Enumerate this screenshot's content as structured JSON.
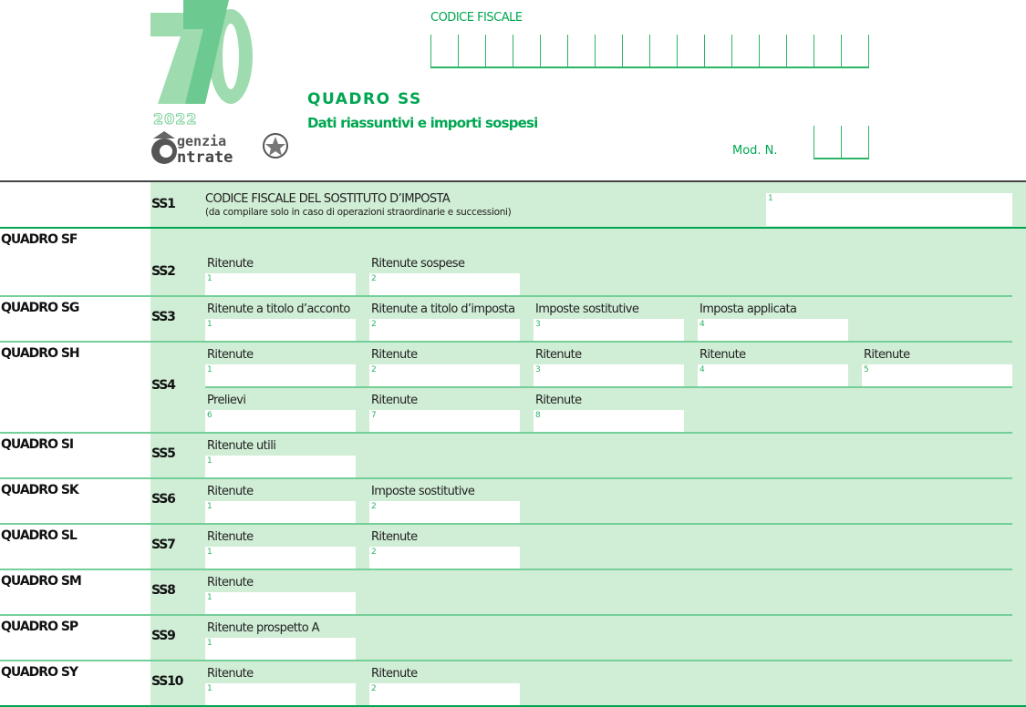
{
  "header": {
    "logo_number": "70",
    "logo_year": "2022",
    "logo_agency": "Agenzia Entrate",
    "codice_fiscale_label": "CODICE FISCALE",
    "codice_fiscale_boxes": 16,
    "title": "QUADRO SS",
    "subtitle": "Dati riassuntivi e importi sospesi",
    "mod_label": "Mod. N.",
    "mod_boxes": 2
  },
  "colors": {
    "accent": "#00a651",
    "background": "#d0edd5",
    "line": "#74cf99"
  },
  "ss1": {
    "code": "SS1",
    "title": "CODICE FISCALE DEL SOSTITUTO D’IMPOSTA",
    "note": "(da compilare solo in caso di operazioni straordinarie e successioni)",
    "field_num": "1"
  },
  "rows": [
    {
      "quadro": "QUADRO SF",
      "code": "SS2",
      "fields": [
        [
          "Ritenute",
          "1"
        ],
        [
          "Ritenute sospese",
          "2"
        ]
      ]
    },
    {
      "quadro": "QUADRO SG",
      "code": "SS3",
      "fields": [
        [
          "Ritenute a titolo d’acconto",
          "1"
        ],
        [
          "Ritenute a titolo d’imposta",
          "2"
        ],
        [
          "Imposte sostitutive",
          "3"
        ],
        [
          "Imposta applicata",
          "4"
        ]
      ]
    },
    {
      "quadro": "QUADRO SH",
      "code": "SS4",
      "fields": [
        [
          "Ritenute",
          "1"
        ],
        [
          "Ritenute",
          "2"
        ],
        [
          "Ritenute",
          "3"
        ],
        [
          "Ritenute",
          "4"
        ],
        [
          "Ritenute",
          "5"
        ]
      ],
      "fields2": [
        [
          "Prelievi",
          "6"
        ],
        [
          "Ritenute",
          "7"
        ],
        [
          "Ritenute",
          "8"
        ]
      ]
    },
    {
      "quadro": "QUADRO SI",
      "code": "SS5",
      "fields": [
        [
          "Ritenute utili",
          "1"
        ]
      ]
    },
    {
      "quadro": "QUADRO SK",
      "code": "SS6",
      "fields": [
        [
          "Ritenute",
          "1"
        ],
        [
          "Imposte sostitutive",
          "2"
        ]
      ]
    },
    {
      "quadro": "QUADRO SL",
      "code": "SS7",
      "fields": [
        [
          "Ritenute",
          "1"
        ],
        [
          "Ritenute",
          "2"
        ]
      ]
    },
    {
      "quadro": "QUADRO SM",
      "code": "SS8",
      "fields": [
        [
          "Ritenute",
          "1"
        ]
      ]
    },
    {
      "quadro": "QUADRO SP",
      "code": "SS9",
      "fields": [
        [
          "Ritenute prospetto A",
          "1"
        ]
      ]
    },
    {
      "quadro": "QUADRO SY",
      "code": "SS10",
      "fields": [
        [
          "Ritenute",
          "1"
        ],
        [
          "Ritenute",
          "2"
        ]
      ]
    }
  ]
}
